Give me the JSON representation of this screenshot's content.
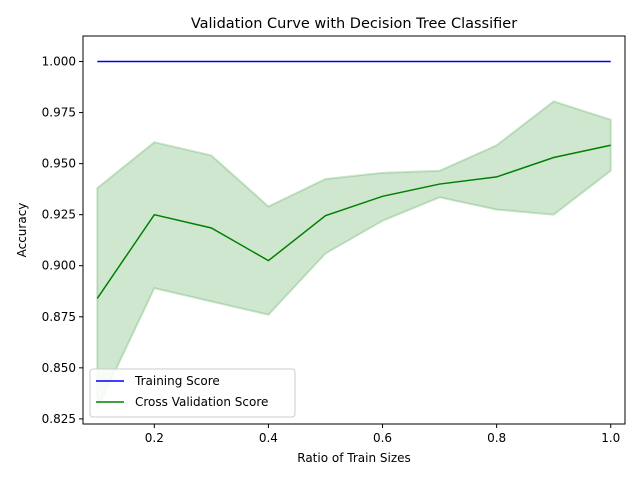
{
  "chart_data": {
    "type": "line",
    "title": "Validation Curve with Decision Tree Classifier",
    "xlabel": "Ratio of Train Sizes",
    "ylabel": "Accuracy",
    "xlim": [
      0.075,
      1.025
    ],
    "ylim": [
      0.8225,
      1.0125
    ],
    "xticks": [
      0.2,
      0.4,
      0.6,
      0.8,
      1.0
    ],
    "xtick_labels": [
      "0.2",
      "0.4",
      "0.6",
      "0.8",
      "1.0"
    ],
    "yticks": [
      0.825,
      0.85,
      0.875,
      0.9,
      0.925,
      0.95,
      0.975,
      1.0
    ],
    "ytick_labels": [
      "0.825",
      "0.850",
      "0.875",
      "0.900",
      "0.925",
      "0.950",
      "0.975",
      "1.000"
    ],
    "x": [
      0.1,
      0.2,
      0.3,
      0.4,
      0.5,
      0.6,
      0.7,
      0.8,
      0.9,
      1.0
    ],
    "series": [
      {
        "name": "Training Score",
        "color": "#0000ff",
        "values": [
          1.0,
          1.0,
          1.0,
          1.0,
          1.0,
          1.0,
          1.0,
          1.0,
          1.0,
          1.0
        ]
      },
      {
        "name": "Cross Validation Score",
        "color": "#008000",
        "values": [
          0.884,
          0.925,
          0.9185,
          0.9025,
          0.9245,
          0.934,
          0.94,
          0.9435,
          0.953,
          0.959
        ],
        "band_lower": [
          0.83,
          0.889,
          0.8825,
          0.876,
          0.906,
          0.922,
          0.9335,
          0.9275,
          0.925,
          0.9465
        ],
        "band_upper": [
          0.938,
          0.9605,
          0.954,
          0.929,
          0.9425,
          0.9455,
          0.9465,
          0.959,
          0.9805,
          0.9715
        ],
        "band_color": "#008000"
      }
    ],
    "grid": false,
    "legend_position": "lower-left"
  }
}
